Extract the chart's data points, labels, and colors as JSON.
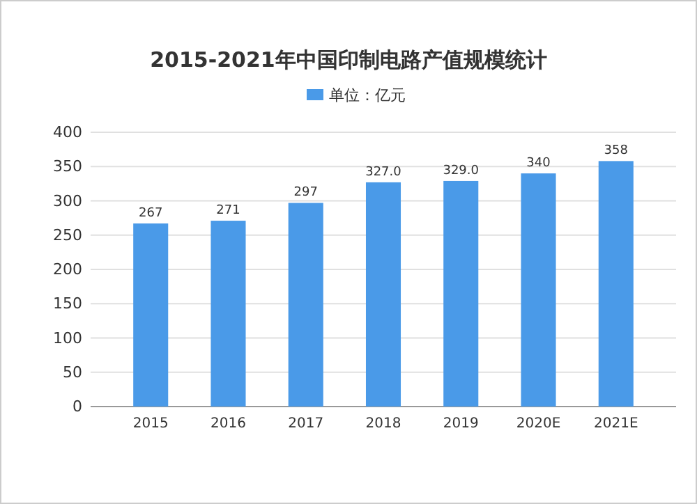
{
  "chart_data": {
    "type": "bar",
    "title": "2015-2021年中国印制电路产值规模统计",
    "categories": [
      "2015",
      "2016",
      "2017",
      "2018",
      "2019",
      "2020E",
      "2021E"
    ],
    "series": [
      {
        "name": "单位：亿元",
        "color": "#4a9ae8",
        "values": [
          267,
          271,
          297,
          327,
          329,
          340,
          358
        ]
      }
    ],
    "value_labels": [
      "267",
      "271",
      "297",
      "327.0",
      "329.0",
      "340",
      "358"
    ],
    "ylim": [
      0,
      400
    ],
    "yticks": [
      0,
      50,
      100,
      150,
      200,
      250,
      300,
      350,
      400
    ],
    "grid": "y",
    "legend": "top"
  }
}
